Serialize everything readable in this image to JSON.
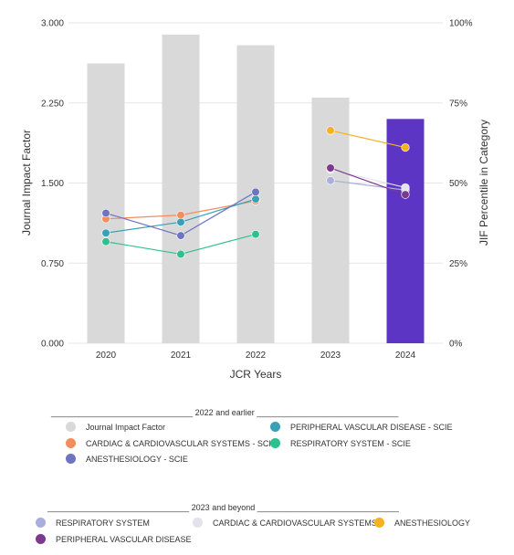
{
  "chart_data": {
    "type": "bar",
    "x_categories": [
      "2020",
      "2021",
      "2022",
      "2023",
      "2024"
    ],
    "xlabel": "JCR Years",
    "ylabel_left": "Journal Impact Factor",
    "ylabel_right": "JIF Percentile in Category",
    "ylim_left": [
      0,
      3.0
    ],
    "ylim_right": [
      0,
      100
    ],
    "left_ticks": [
      "0.000",
      "0.750",
      "1.500",
      "2.250",
      "3.000"
    ],
    "right_ticks": [
      "0%",
      "25%",
      "50%",
      "75%",
      "100%"
    ],
    "grid": true,
    "bars": {
      "name": "Journal Impact Factor",
      "values": [
        2.62,
        2.89,
        2.79,
        2.3,
        2.1
      ],
      "colors": [
        "#d9d9d9",
        "#d9d9d9",
        "#d9d9d9",
        "#d9d9d9",
        "#5c35c4"
      ]
    },
    "series": [
      {
        "name": "CARDIAC & CARDIOVASCULAR SYSTEMS - SCIE",
        "color": "#f28e5e",
        "x": [
          "2020",
          "2021",
          "2022"
        ],
        "values": [
          38.8,
          40.0,
          44.4
        ]
      },
      {
        "name": "PERIPHERAL VASCULAR DISEASE - SCIE",
        "color": "#3aa0b5",
        "x": [
          "2020",
          "2021",
          "2022"
        ],
        "values": [
          34.4,
          37.8,
          45.0
        ]
      },
      {
        "name": "RESPIRATORY SYSTEM - SCIE",
        "color": "#2ec08e",
        "x": [
          "2020",
          "2021",
          "2022"
        ],
        "values": [
          31.7,
          27.8,
          34.0
        ]
      },
      {
        "name": "ANESTHESIOLOGY - SCIE",
        "color": "#6e74c0",
        "x": [
          "2020",
          "2021",
          "2022"
        ],
        "values": [
          40.6,
          33.6,
          47.2
        ]
      },
      {
        "name": "RESPIRATORY SYSTEM",
        "color": "#a9aedc",
        "x": [
          "2023",
          "2024"
        ],
        "values": [
          50.8,
          47.8
        ]
      },
      {
        "name": "CARDIAC & CARDIOVASCULAR SYSTEMS",
        "color": "#e2e2ec",
        "x": [
          "2023",
          "2024"
        ],
        "values": [
          54.2,
          48.6
        ]
      },
      {
        "name": "ANESTHESIOLOGY",
        "color": "#f5b21b",
        "x": [
          "2023",
          "2024"
        ],
        "values": [
          66.4,
          61.1
        ]
      },
      {
        "name": "PERIPHERAL VASCULAR DISEASE",
        "color": "#7b3a8e",
        "x": [
          "2023",
          "2024"
        ],
        "values": [
          54.7,
          46.4
        ]
      }
    ]
  },
  "legend": {
    "group1_title": "_______________________________ 2022 and earlier _______________________________",
    "group1_items": [
      {
        "label": "Journal Impact Factor",
        "color": "#d9d9d9"
      },
      {
        "label": "PERIPHERAL VASCULAR DISEASE - SCIE",
        "color": "#3aa0b5"
      },
      {
        "label": "CARDIAC & CARDIOVASCULAR SYSTEMS - SCIE",
        "color": "#f28e5e"
      },
      {
        "label": "RESPIRATORY SYSTEM - SCIE",
        "color": "#2ec08e"
      },
      {
        "label": "ANESTHESIOLOGY - SCIE",
        "color": "#6e74c0"
      }
    ],
    "group2_title": "_______________________________ 2023 and beyond _______________________________",
    "group2_items": [
      {
        "label": "RESPIRATORY SYSTEM",
        "color": "#a9aedc"
      },
      {
        "label": "CARDIAC & CARDIOVASCULAR SYSTEMS",
        "color": "#e2e2ec"
      },
      {
        "label": "ANESTHESIOLOGY",
        "color": "#f5b21b"
      },
      {
        "label": "PERIPHERAL VASCULAR DISEASE",
        "color": "#7b3a8e"
      }
    ]
  }
}
